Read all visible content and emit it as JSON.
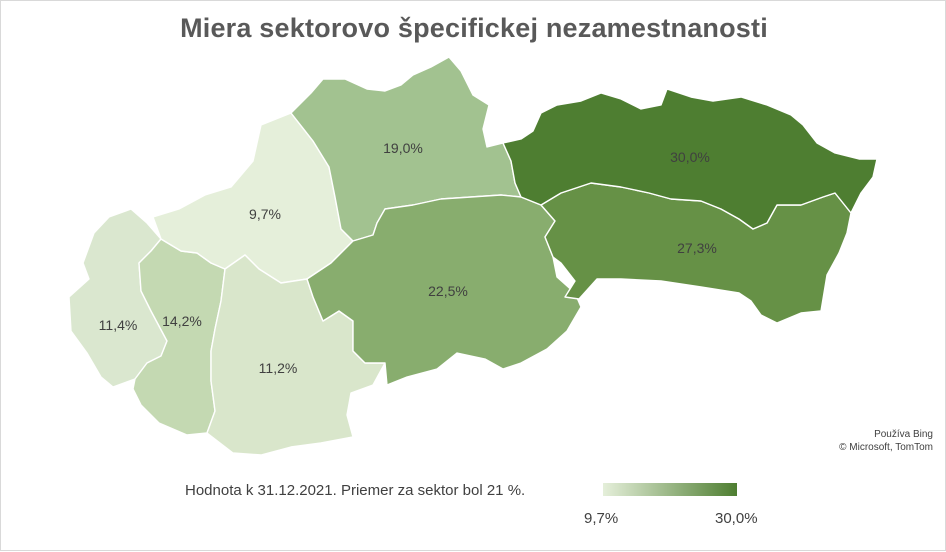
{
  "title": "Miera sektorovo špecifickej nezamestnanosti",
  "regions": [
    {
      "value": 11.4,
      "label": "11,4%",
      "color": "#dae7cf"
    },
    {
      "value": 14.2,
      "label": "14,2%",
      "color": "#c4d9b2"
    },
    {
      "value": 9.7,
      "label": "9,7%",
      "color": "#e5efda"
    },
    {
      "value": 11.2,
      "label": "11,2%",
      "color": "#d9e6cb"
    },
    {
      "value": 19.0,
      "label": "19,0%",
      "color": "#a2c290"
    },
    {
      "value": 22.5,
      "label": "22,5%",
      "color": "#88ad6e"
    },
    {
      "value": 27.3,
      "label": "27,3%",
      "color": "#669146"
    },
    {
      "value": 30.0,
      "label": "30,0%",
      "color": "#4e7e31"
    }
  ],
  "attribution": {
    "line1": "Používa Bing",
    "line2": "© Microsoft, TomTom"
  },
  "footnote": "Hodnota k 31.12.2021. Priemer za sektor bol 21 %.",
  "legend": {
    "min_label": "9,7%",
    "max_label": "30,0%",
    "min_color": "#e5efda",
    "max_color": "#4e7e31"
  }
}
